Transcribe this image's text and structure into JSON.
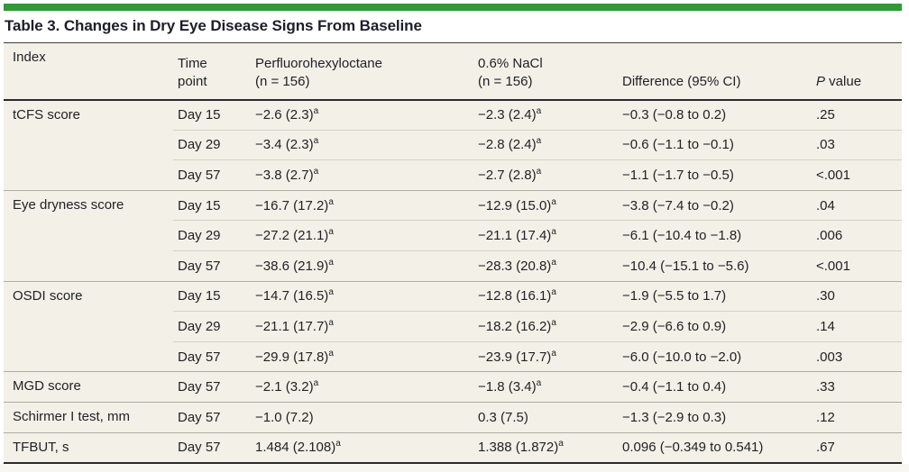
{
  "colors": {
    "accent_green": "#2e9b36",
    "table_bg": "#f3f1e7",
    "rule_dark": "#2a2a30",
    "row_line": "#d5d3c6",
    "group_line": "#aeaca0",
    "text": "#212128"
  },
  "table": {
    "title": "Table 3. Changes in Dry Eye Disease Signs From Baseline",
    "header": {
      "index": "Index",
      "time": "Time\npoint",
      "pfh": "Perfluorohexyloctane\n(n = 156)",
      "nacl": "0.6% NaCl\n(n = 156)",
      "diff": "Difference (95% CI)",
      "p_italic": "P",
      "p_rest": " value"
    },
    "groups": [
      {
        "index": "tCFS score",
        "rows": [
          {
            "time": "Day 15",
            "pfh": "−2.6 (2.3)",
            "pfh_sup": "a",
            "nacl": "−2.3 (2.4)",
            "nacl_sup": "a",
            "diff": "−0.3 (−0.8 to 0.2)",
            "p": ".25"
          },
          {
            "time": "Day 29",
            "pfh": "−3.4 (2.3)",
            "pfh_sup": "a",
            "nacl": "−2.8 (2.4)",
            "nacl_sup": "a",
            "diff": "−0.6 (−1.1 to −0.1)",
            "p": ".03"
          },
          {
            "time": "Day 57",
            "pfh": "−3.8 (2.7)",
            "pfh_sup": "a",
            "nacl": "−2.7 (2.8)",
            "nacl_sup": "a",
            "diff": "−1.1 (−1.7 to −0.5)",
            "p": "<.001"
          }
        ]
      },
      {
        "index": "Eye dryness score",
        "rows": [
          {
            "time": "Day 15",
            "pfh": "−16.7 (17.2)",
            "pfh_sup": "a",
            "nacl": "−12.9 (15.0)",
            "nacl_sup": "a",
            "diff": "−3.8 (−7.4 to −0.2)",
            "p": ".04"
          },
          {
            "time": "Day 29",
            "pfh": "−27.2 (21.1)",
            "pfh_sup": "a",
            "nacl": "−21.1 (17.4)",
            "nacl_sup": "a",
            "diff": "−6.1 (−10.4 to −1.8)",
            "p": ".006"
          },
          {
            "time": "Day 57",
            "pfh": "−38.6 (21.9)",
            "pfh_sup": "a",
            "nacl": "−28.3 (20.8)",
            "nacl_sup": "a",
            "diff": "−10.4 (−15.1 to −5.6)",
            "p": "<.001"
          }
        ]
      },
      {
        "index": "OSDI score",
        "rows": [
          {
            "time": "Day 15",
            "pfh": "−14.7 (16.5)",
            "pfh_sup": "a",
            "nacl": "−12.8 (16.1)",
            "nacl_sup": "a",
            "diff": "−1.9 (−5.5 to 1.7)",
            "p": ".30"
          },
          {
            "time": "Day 29",
            "pfh": "−21.1 (17.7)",
            "pfh_sup": "a",
            "nacl": "−18.2 (16.2)",
            "nacl_sup": "a",
            "diff": "−2.9 (−6.6 to 0.9)",
            "p": ".14"
          },
          {
            "time": "Day 57",
            "pfh": "−29.9 (17.8)",
            "pfh_sup": "a",
            "nacl": "−23.9 (17.7)",
            "nacl_sup": "a",
            "diff": "−6.0 (−10.0 to −2.0)",
            "p": ".003"
          }
        ]
      },
      {
        "index": "MGD score",
        "rows": [
          {
            "time": "Day 57",
            "pfh": "−2.1 (3.2)",
            "pfh_sup": "a",
            "nacl": "−1.8 (3.4)",
            "nacl_sup": "a",
            "diff": "−0.4 (−1.1 to 0.4)",
            "p": ".33"
          }
        ]
      },
      {
        "index": "Schirmer I test, mm",
        "rows": [
          {
            "time": "Day 57",
            "pfh": "−1.0 (7.2)",
            "pfh_sup": null,
            "nacl": "0.3 (7.5)",
            "nacl_sup": null,
            "diff": "−1.3 (−2.9 to 0.3)",
            "p": ".12"
          }
        ]
      },
      {
        "index": "TFBUT, s",
        "rows": [
          {
            "time": "Day 57",
            "pfh": "1.484 (2.108)",
            "pfh_sup": "a",
            "nacl": "1.388 (1.872)",
            "nacl_sup": "a",
            "diff": "0.096 (−0.349 to 0.541)",
            "p": ".67"
          }
        ]
      }
    ]
  }
}
